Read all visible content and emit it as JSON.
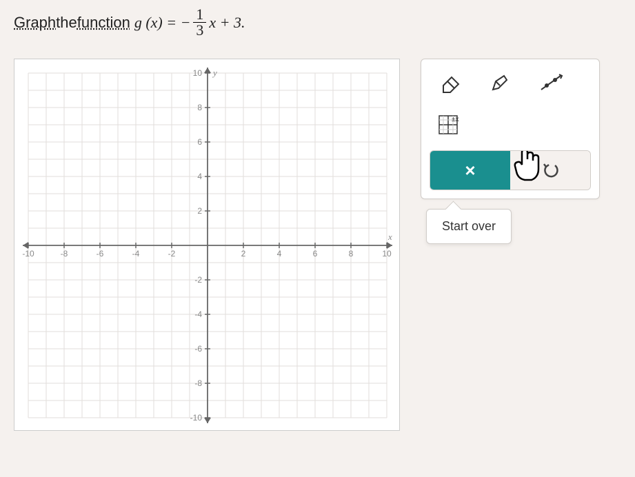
{
  "prompt": {
    "word_graph": "Graph",
    "word_the": " the ",
    "word_function": "function",
    "fn_left": " g (x) = −",
    "frac_num": "1",
    "frac_den": "3",
    "fn_right": "x + 3."
  },
  "graph": {
    "type": "cartesian-grid",
    "xmin": -10,
    "xmax": 10,
    "ymin": -10,
    "ymax": 10,
    "tick_step": 2,
    "minor_step": 1,
    "x_ticks": [
      "-10",
      "-8",
      "-6",
      "-4",
      "-2",
      "2",
      "4",
      "6",
      "8",
      "10"
    ],
    "y_ticks": [
      "-10",
      "-8",
      "-6",
      "-4",
      "-2",
      "2",
      "4",
      "6",
      "8",
      "10"
    ],
    "x_label": "x",
    "y_label": "y",
    "axis_color": "#666666",
    "grid_color": "#e2dedb",
    "background_color": "#ffffff",
    "tick_fontsize": 12,
    "tick_color": "#888888"
  },
  "tools": {
    "eraser": "eraser-icon",
    "pencil": "pencil-icon",
    "line": "line-icon",
    "grid_zoom": "grid-zoom-icon",
    "clear": "×",
    "undo": "↺"
  },
  "tooltip": {
    "text": "Start over"
  },
  "colors": {
    "accent": "#1a8f8f",
    "panel_bg": "#ffffff",
    "page_bg": "#f5f1ee",
    "border": "#d0ccc8",
    "text": "#333333"
  }
}
